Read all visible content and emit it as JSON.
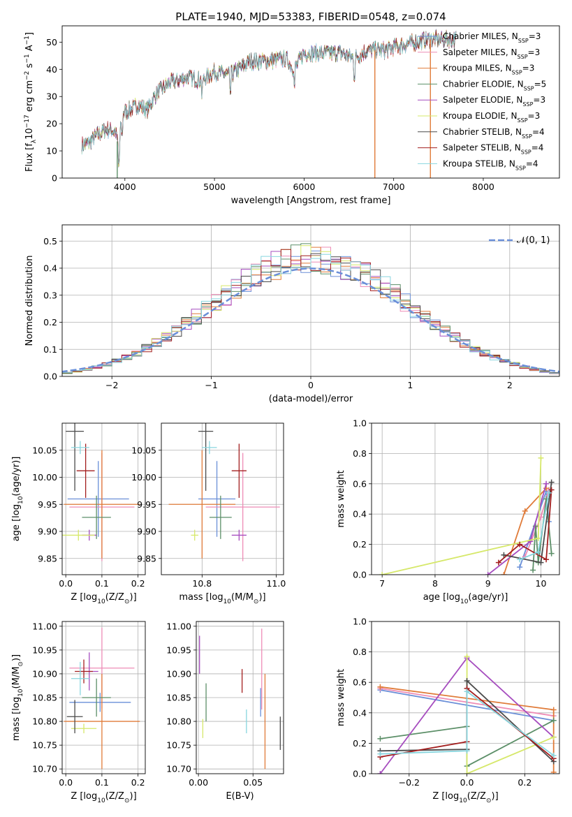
{
  "title": "PLATE=1940, MJD=53383, FIBERID=0548, z=0.074",
  "models": [
    {
      "name": "Chabrier MILES",
      "nssp": 3,
      "color": "#6a8fd8"
    },
    {
      "name": "Salpeter MILES",
      "nssp": 3,
      "color": "#ee8cb6"
    },
    {
      "name": "Kroupa MILES",
      "nssp": 3,
      "color": "#e07b39"
    },
    {
      "name": "Chabrier ELODIE",
      "nssp": 5,
      "color": "#5c8f68"
    },
    {
      "name": "Salpeter ELODIE",
      "nssp": 3,
      "color": "#a64dbf"
    },
    {
      "name": "Kroupa ELODIE",
      "nssp": 3,
      "color": "#d6e86a"
    },
    {
      "name": "Chabrier STELIB",
      "nssp": 4,
      "color": "#4a4a4a"
    },
    {
      "name": "Salpeter STELIB",
      "nssp": 4,
      "color": "#a31f1f"
    },
    {
      "name": "Kroupa STELIB",
      "nssp": 4,
      "color": "#88d6df"
    }
  ],
  "legend_nssp_label": "N",
  "legend_nssp_sub": "SSP",
  "chart_data": [
    {
      "id": "spectrum",
      "type": "line",
      "xlabel": "wavelength [Angstrom, rest frame]",
      "ylabel_parts": [
        "Flux [f",
        "λ",
        "10",
        "−17",
        " erg cm",
        "−2",
        " s",
        "−1",
        " A",
        "−1",
        "]"
      ],
      "xlim": [
        3300,
        8850
      ],
      "ylim": [
        0,
        56
      ],
      "xticks": [
        4000,
        5000,
        6000,
        7000,
        8000
      ],
      "yticks": [
        0,
        10,
        20,
        30,
        40,
        50
      ],
      "grid": false,
      "legend": "right",
      "spectrum_envelope": {
        "x": [
          3520,
          3600,
          3700,
          3800,
          3900,
          3930,
          3970,
          4050,
          4150,
          4250,
          4350,
          4500,
          4700,
          4860,
          5000,
          5180,
          5400,
          5600,
          5800,
          5890,
          6000,
          6200,
          6400,
          6563,
          6700,
          6900,
          7100,
          7250,
          7400
        ],
        "y": [
          12,
          13,
          16,
          18,
          17,
          10,
          24,
          25,
          27,
          25,
          31,
          35,
          37,
          36,
          39,
          38,
          43,
          43,
          44,
          40,
          46,
          46,
          46,
          44,
          47,
          47,
          49,
          50,
          51
        ]
      },
      "artifacts": [
        {
          "x": 3915,
          "model": 3
        },
        {
          "x": 6790,
          "model": 2
        },
        {
          "x": 7410,
          "model": 2
        }
      ]
    },
    {
      "id": "residual-hist",
      "type": "histogram",
      "xlabel": "(data-model)/error",
      "ylabel": "Normed distribution",
      "xlim": [
        -2.5,
        2.5
      ],
      "ylim": [
        0,
        0.56
      ],
      "xticks": [
        -2,
        -1,
        0,
        1,
        2
      ],
      "yticks": [
        0.0,
        0.1,
        0.2,
        0.3,
        0.4,
        0.5
      ],
      "grid": true,
      "bin_width": 0.1,
      "reference": {
        "name": "𝒩(0, 1)",
        "mu": 0,
        "sigma": 1,
        "color": "#6a8fd8"
      },
      "legend": "upper-right"
    },
    {
      "id": "age-vs-Z",
      "type": "errorbar",
      "xlabel_parts": [
        "Z [log",
        "10",
        "(Z/Z",
        "⊙",
        ")]"
      ],
      "ylabel_parts": [
        "age  [log",
        "10",
        "(age/yr)]"
      ],
      "xlim": [
        -0.01,
        0.22
      ],
      "ylim": [
        9.82,
        10.1
      ],
      "xticks": [
        0.0,
        0.1,
        0.2
      ],
      "yticks": [
        9.85,
        9.9,
        9.95,
        10.0,
        10.05
      ],
      "grid": true,
      "points": [
        {
          "model": 0,
          "x": 0.09,
          "xerr": 0.085,
          "y": 9.96,
          "yerr": 0.07
        },
        {
          "model": 1,
          "x": 0.1,
          "xerr": 0.09,
          "y": 9.945,
          "yerr": 0.1
        },
        {
          "model": 2,
          "x": 0.1,
          "xerr": 0.105,
          "y": 9.95,
          "yerr": 0.1
        },
        {
          "model": 3,
          "x": 0.085,
          "xerr": 0.04,
          "y": 9.926,
          "yerr": 0.04
        },
        {
          "model": 4,
          "x": 0.065,
          "xerr": 0.02,
          "y": 9.893,
          "yerr": 0.01
        },
        {
          "model": 5,
          "x": 0.035,
          "xerr": 0.045,
          "y": 9.893,
          "yerr": 0.01
        },
        {
          "model": 6,
          "x": 0.025,
          "xerr": 0.025,
          "y": 10.085,
          "yerr": 0.11
        },
        {
          "model": 7,
          "x": 0.055,
          "xerr": 0.025,
          "y": 10.012,
          "yerr": 0.05
        },
        {
          "model": 8,
          "x": 0.04,
          "xerr": 0.025,
          "y": 10.055,
          "yerr": 0.012
        }
      ]
    },
    {
      "id": "age-vs-mass",
      "type": "errorbar",
      "xlabel_parts": [
        "mass [log",
        "10",
        "(M/M",
        "⊙",
        ")]"
      ],
      "xlim": [
        10.69,
        11.02
      ],
      "ylim": [
        9.82,
        10.1
      ],
      "xticks": [
        10.8,
        11.0
      ],
      "yticks": [
        9.85,
        9.9,
        9.95,
        10.0,
        10.05
      ],
      "grid": true,
      "points": [
        {
          "model": 0,
          "x": 10.84,
          "xerr": 0.05,
          "y": 9.96,
          "yerr": 0.07
        },
        {
          "model": 1,
          "x": 10.91,
          "xerr": 0.1,
          "y": 9.945,
          "yerr": 0.1
        },
        {
          "model": 2,
          "x": 10.8,
          "xerr": 0.09,
          "y": 9.95,
          "yerr": 0.1
        },
        {
          "model": 3,
          "x": 10.85,
          "xerr": 0.03,
          "y": 9.926,
          "yerr": 0.04
        },
        {
          "model": 4,
          "x": 10.9,
          "xerr": 0.02,
          "y": 9.893,
          "yerr": 0.01
        },
        {
          "model": 5,
          "x": 10.78,
          "xerr": 0.01,
          "y": 9.893,
          "yerr": 0.01
        },
        {
          "model": 6,
          "x": 10.81,
          "xerr": 0.02,
          "y": 10.085,
          "yerr": 0.11
        },
        {
          "model": 7,
          "x": 10.9,
          "xerr": 0.02,
          "y": 10.012,
          "yerr": 0.05
        },
        {
          "model": 8,
          "x": 10.82,
          "xerr": 0.02,
          "y": 10.055,
          "yerr": 0.012
        }
      ]
    },
    {
      "id": "weight-vs-age",
      "type": "line",
      "xlabel_parts": [
        "age  [log",
        "10",
        "(age/yr)]"
      ],
      "ylabel": "mass weight",
      "xlim": [
        6.8,
        10.35
      ],
      "ylim": [
        0,
        1.0
      ],
      "xticks": [
        7,
        8,
        9,
        10
      ],
      "yticks": [
        0.0,
        0.2,
        0.4,
        0.6,
        0.8,
        1.0
      ],
      "grid": true,
      "series": [
        {
          "model": 0,
          "x": [
            9.6,
            10.1,
            10.15
          ],
          "y": [
            0.05,
            0.55,
            0.35
          ]
        },
        {
          "model": 1,
          "x": [
            9.7,
            10.0,
            10.15
          ],
          "y": [
            0.12,
            0.38,
            0.56
          ]
        },
        {
          "model": 2,
          "x": [
            9.3,
            9.7,
            10.1
          ],
          "y": [
            0.0,
            0.42,
            0.57
          ]
        },
        {
          "model": 3,
          "x": [
            9.85,
            9.9,
            9.95,
            10.1,
            10.2
          ],
          "y": [
            0.03,
            0.32,
            0.08,
            0.5,
            0.14
          ]
        },
        {
          "model": 4,
          "x": [
            9.0,
            9.8,
            10.1
          ],
          "y": [
            0.0,
            0.22,
            0.6
          ]
        },
        {
          "model": 5,
          "x": [
            7.0,
            9.95,
            10.0
          ],
          "y": [
            0.0,
            0.24,
            0.77
          ]
        },
        {
          "model": 6,
          "x": [
            9.3,
            10.0,
            10.2
          ],
          "y": [
            0.13,
            0.08,
            0.61
          ]
        },
        {
          "model": 7,
          "x": [
            9.2,
            9.6,
            10.1,
            10.2
          ],
          "y": [
            0.08,
            0.2,
            0.1,
            0.56
          ]
        },
        {
          "model": 8,
          "x": [
            9.6,
            9.95,
            10.15
          ],
          "y": [
            0.1,
            0.15,
            0.54
          ]
        }
      ]
    },
    {
      "id": "mass-vs-Z",
      "type": "errorbar",
      "xlabel_parts": [
        "Z [log",
        "10",
        "(Z/Z",
        "⊙",
        ")]"
      ],
      "ylabel_parts": [
        "mass [log",
        "10",
        "(M/M",
        "⊙",
        ")]"
      ],
      "xlim": [
        -0.01,
        0.22
      ],
      "ylim": [
        10.69,
        11.01
      ],
      "xticks": [
        0.0,
        0.1,
        0.2
      ],
      "yticks": [
        10.7,
        10.75,
        10.8,
        10.85,
        10.9,
        10.95,
        11.0
      ],
      "grid": true,
      "points": [
        {
          "model": 0,
          "x": 0.095,
          "xerr": 0.085,
          "y": 10.84,
          "yerr": 0.02
        },
        {
          "model": 1,
          "x": 0.1,
          "xerr": 0.09,
          "y": 10.912,
          "yerr": 0.085
        },
        {
          "model": 2,
          "x": 0.1,
          "xerr": 0.105,
          "y": 10.8,
          "yerr": 0.1
        },
        {
          "model": 3,
          "x": 0.085,
          "xerr": 0.04,
          "y": 10.85,
          "yerr": 0.04
        },
        {
          "model": 4,
          "x": 0.065,
          "xerr": 0.025,
          "y": 10.905,
          "yerr": 0.04
        },
        {
          "model": 5,
          "x": 0.05,
          "xerr": 0.035,
          "y": 10.785,
          "yerr": 0.01
        },
        {
          "model": 6,
          "x": 0.025,
          "xerr": 0.022,
          "y": 10.81,
          "yerr": 0.035
        },
        {
          "model": 7,
          "x": 0.05,
          "xerr": 0.025,
          "y": 10.905,
          "yerr": 0.025
        },
        {
          "model": 8,
          "x": 0.04,
          "xerr": 0.025,
          "y": 10.89,
          "yerr": 0.035
        }
      ]
    },
    {
      "id": "mass-vs-ebv",
      "type": "errorbar",
      "xlabel": "E(B-V)",
      "xlim": [
        -0.002,
        0.078
      ],
      "ylim": [
        10.69,
        11.01
      ],
      "xticks": [
        0.0,
        0.05
      ],
      "yticks": [
        10.7,
        10.75,
        10.8,
        10.85,
        10.9,
        10.95,
        11.0
      ],
      "grid": true,
      "points": [
        {
          "model": 0,
          "x": 0.057,
          "xerr": 0,
          "y": 10.84,
          "yerr": 0.03
        },
        {
          "model": 1,
          "x": 0.058,
          "xerr": 0,
          "y": 10.91,
          "yerr": 0.085
        },
        {
          "model": 2,
          "x": 0.061,
          "xerr": 0,
          "y": 10.8,
          "yerr": 0.1
        },
        {
          "model": 3,
          "x": 0.007,
          "xerr": 0,
          "y": 10.84,
          "yerr": 0.04
        },
        {
          "model": 4,
          "x": 0.001,
          "xerr": 0,
          "y": 10.94,
          "yerr": 0.04
        },
        {
          "model": 5,
          "x": 0.004,
          "xerr": 0,
          "y": 10.785,
          "yerr": 0.02
        },
        {
          "model": 6,
          "x": 0.075,
          "xerr": 0,
          "y": 10.775,
          "yerr": 0.035
        },
        {
          "model": 7,
          "x": 0.04,
          "xerr": 0,
          "y": 10.885,
          "yerr": 0.025
        },
        {
          "model": 8,
          "x": 0.044,
          "xerr": 0,
          "y": 10.8,
          "yerr": 0.025
        }
      ]
    },
    {
      "id": "weight-vs-Z",
      "type": "line",
      "xlabel_parts": [
        "Z [log",
        "10",
        "(Z/Z",
        "⊙",
        ")]"
      ],
      "ylabel": "mass weight",
      "xlim": [
        -0.33,
        0.32
      ],
      "ylim": [
        0,
        1.0
      ],
      "xticks": [
        -0.2,
        0.0,
        0.2
      ],
      "yticks": [
        0.0,
        0.2,
        0.4,
        0.6,
        0.8,
        1.0
      ],
      "grid": true,
      "series": [
        {
          "model": 0,
          "x": [
            -0.3,
            0.3
          ],
          "y": [
            0.55,
            0.35
          ]
        },
        {
          "model": 1,
          "x": [
            -0.3,
            0.3
          ],
          "y": [
            0.56,
            0.38
          ]
        },
        {
          "model": 2,
          "x": [
            -0.3,
            0.3,
            0.3
          ],
          "y": [
            0.57,
            0.42,
            0.01
          ]
        },
        {
          "model": 3,
          "x": [
            -0.3,
            0.0,
            0.0,
            0.3
          ],
          "y": [
            0.23,
            0.31,
            0.05,
            0.35
          ]
        },
        {
          "model": 4,
          "x": [
            -0.3,
            0.0,
            0.3
          ],
          "y": [
            0.0,
            0.76,
            0.24
          ]
        },
        {
          "model": 5,
          "x": [
            0.0,
            0.0,
            0.3
          ],
          "y": [
            0.77,
            0.0,
            0.24
          ]
        },
        {
          "model": 6,
          "x": [
            -0.3,
            0.0,
            0.0,
            0.3
          ],
          "y": [
            0.15,
            0.16,
            0.61,
            0.08
          ]
        },
        {
          "model": 7,
          "x": [
            -0.3,
            0.0,
            0.0,
            0.3
          ],
          "y": [
            0.11,
            0.21,
            0.56,
            0.1
          ]
        },
        {
          "model": 8,
          "x": [
            -0.3,
            0.0,
            0.0,
            0.3
          ],
          "y": [
            0.13,
            0.15,
            0.54,
            0.12
          ]
        }
      ]
    }
  ]
}
